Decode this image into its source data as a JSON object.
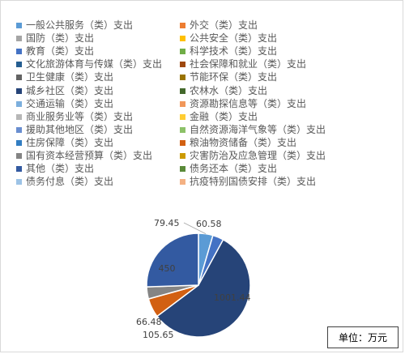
{
  "chart_data": {
    "type": "pie",
    "unit_label": "单位：万元",
    "legend_position": "top",
    "categories": [
      "一般公共服务（类）支出",
      "外交（类）支出",
      "国防（类）支出",
      "公共安全（类）支出",
      "教育（类）支出",
      "科学技术（类）支出",
      "文化旅游体育与传媒（类）支出",
      "社会保障和就业（类）支出",
      "卫生健康（类）支出",
      "节能环保（类）支出",
      "城乡社区（类）支出",
      "农林水（类）支出",
      "交通运输（类）支出",
      "资源勘探信息等（类）支出",
      "商业服务业等（类）支出",
      "金融（类）支出",
      "援助其他地区（类）支出",
      "自然资源海洋气象等（类）支出",
      "住房保障（类）支出",
      "粮油物资储备（类）支出",
      "国有资本经营预算（类）支出",
      "灾害防治及应急管理（类）支出",
      "其他（类）支出",
      "债务还本（类）支出",
      "债务付息（类）支出",
      "抗疫特别国债安排（类）支出"
    ],
    "colors": [
      "#5b9bd5",
      "#ed7d31",
      "#a5a5a5",
      "#ffc000",
      "#4472c4",
      "#70ad47",
      "#255e91",
      "#9e480e",
      "#636363",
      "#997300",
      "#264478",
      "#43682b",
      "#7cafdd",
      "#f1975a",
      "#b7b7b7",
      "#ffcd33",
      "#698ed0",
      "#8cc168",
      "#327dc2",
      "#d26012",
      "#848484",
      "#cc9a00",
      "#335aa1",
      "#5a8a39",
      "#9dc3e6",
      "#f4b183"
    ],
    "values": [
      79.45,
      0,
      0,
      0,
      60.58,
      0,
      0,
      0,
      0,
      0,
      1001.44,
      0,
      0,
      0,
      0,
      0,
      0,
      0,
      0,
      105.65,
      66.48,
      0,
      450,
      0,
      0,
      0
    ],
    "data_labels": [
      "79.45",
      "",
      "",
      "",
      "60.58",
      "",
      "",
      "",
      "",
      "",
      "1001.44",
      "",
      "",
      "",
      "",
      "",
      "",
      "",
      "",
      "105.65",
      "66.48",
      "",
      "450",
      "",
      "",
      ""
    ]
  }
}
